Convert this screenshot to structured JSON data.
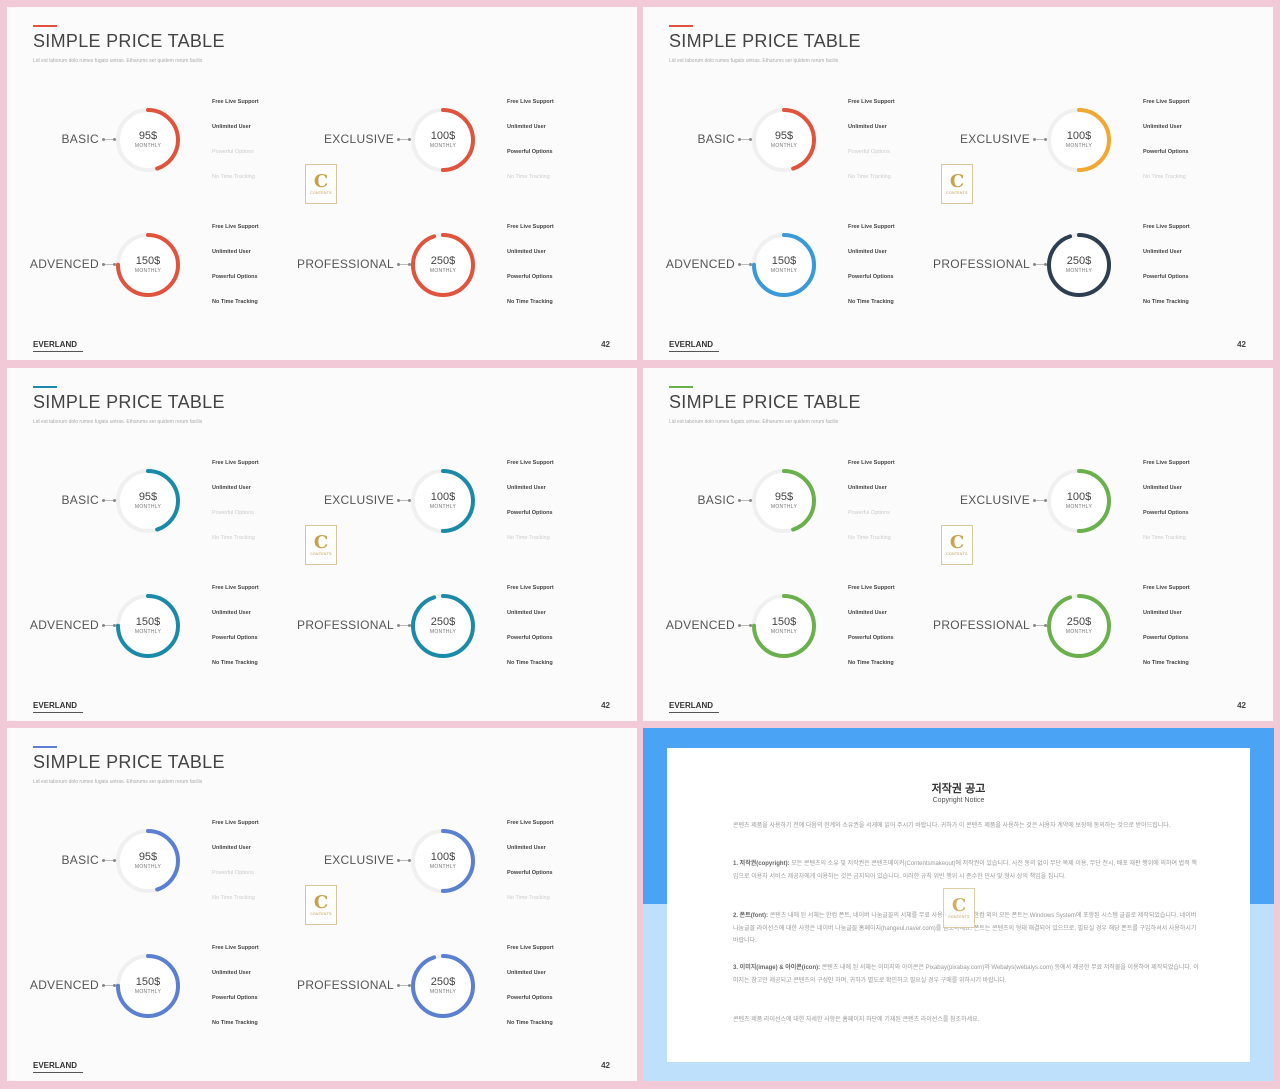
{
  "slide_common": {
    "title": "SIMPLE PRICE TABLE",
    "subtitle": "Lid est laborum dolo rumes fugats untras. Etharums ser quidem rerum facilis",
    "brand": "EVERLAND",
    "page_number": "42",
    "monthly_label": "MONTHLY",
    "logo_letter": "C",
    "logo_text": "CONTENTS"
  },
  "plans": [
    {
      "name": "BASIC",
      "price": "95$",
      "ring_fraction": 0.45,
      "features": [
        {
          "label": "Free Live Support",
          "enabled": true
        },
        {
          "label": "Unlimited User",
          "enabled": true
        },
        {
          "label": "Powerful Options",
          "enabled": false
        },
        {
          "label": "No Time Tracking",
          "enabled": false
        }
      ]
    },
    {
      "name": "EXCLUSIVE",
      "price": "100$",
      "ring_fraction": 0.5,
      "features": [
        {
          "label": "Free Live Support",
          "enabled": true
        },
        {
          "label": "Unlimited User",
          "enabled": true
        },
        {
          "label": "Powerful Options",
          "enabled": true
        },
        {
          "label": "No Time Tracking",
          "enabled": false
        }
      ]
    },
    {
      "name": "ADVENCED",
      "price": "150$",
      "ring_fraction": 0.75,
      "features": [
        {
          "label": "Free Live Support",
          "enabled": true
        },
        {
          "label": "Unlimited User",
          "enabled": true
        },
        {
          "label": "Powerful Options",
          "enabled": true
        },
        {
          "label": "No Time Tracking",
          "enabled": true
        }
      ]
    },
    {
      "name": "PROFESSIONAL",
      "price": "250$",
      "ring_fraction": 0.95,
      "features": [
        {
          "label": "Free Live Support",
          "enabled": true
        },
        {
          "label": "Unlimited User",
          "enabled": true
        },
        {
          "label": "Powerful Options",
          "enabled": true
        },
        {
          "label": "No Time Tracking",
          "enabled": true
        }
      ]
    }
  ],
  "slides": [
    {
      "accent": "#e0533d",
      "ring_colors": [
        "#e0533d",
        "#e0533d",
        "#e0533d",
        "#e0533d"
      ]
    },
    {
      "accent": "#e0533d",
      "ring_colors": [
        "#e0533d",
        "#f0a830",
        "#3a9ad9",
        "#2d3e50"
      ]
    },
    {
      "accent": "#1b8aa8",
      "ring_colors": [
        "#1b8aa8",
        "#1b8aa8",
        "#1b8aa8",
        "#1b8aa8"
      ]
    },
    {
      "accent": "#6ab04c",
      "ring_colors": [
        "#6ab04c",
        "#6ab04c",
        "#6ab04c",
        "#6ab04c"
      ]
    },
    {
      "accent": "#5b7fd1",
      "ring_colors": [
        "#5b7fd1",
        "#5b7fd1",
        "#5b7fd1",
        "#5b7fd1"
      ]
    }
  ],
  "notice": {
    "title": "저작권 공고",
    "subtitle": "Copyright Notice",
    "paragraphs": [
      {
        "lead": "",
        "text": "콘텐츠 제품을 사용하기 전에 다음의 한계와 소유권을 서게에 읽어 주시기 바랍니다. 귀하가 이 콘텐츠 제품을 사용하는 것은 사용자 계약에 보장에 동의하는 것으로 받아드립니다."
      },
      {
        "lead": "1. 저작권(copyright):",
        "text": " 모든 콘텐츠의 소유 및 저작권은 콘텐츠메이커(Contentsmakeout)에 저작권이 있습니다. 사전 동의 없이 무단 복제 이용, 무단 전시, 배포 재판 행위에 의하여 법적 책임으로 이용자 서비스 제공자에게 이용하는 것은 금지되어 있습니다. 이러한 규칙 위반 행위 시 준수한 민사 및 형사 상의 책임을 집니다."
      },
      {
        "lead": "2. 폰트(font):",
        "text": " 콘텐츠 내에 된 서체는 한컴 폰트, 네이버 나눔글꼴의 서체를 무료 사용하였습니다. 한컴 외의 모든 폰트는 Windows System에 포함된 시스템 글꼴로 제작되었습니다. 네이버 나눔글꼴 라이선스에 대한 사항은 네이버 나눔글꼴 홈페이지(hangeul.naver.com)를 참조하세요. 폰트는 콘텐츠의 형태 해결되어 있으므로, 필요실 경우 해당 폰트를 구입하셔서 사용하시기 바랍니다."
      },
      {
        "lead": "3. 이미지(image) & 아이콘(icon):",
        "text": " 콘텐츠 내에 된 서체는 이미지와 아이콘은 Pixabay(pixabay.com)와 Webalys(webalys.com) 등에서 제공한 무료 저작물을 이용하여 제작되었습니다. 이미지는 참고만 제공되고 콘텐츠의 구성만 하며, 귀하가 별도로 확인하고 필요실 경우 구매를 위하시기 바랍니다."
      },
      {
        "lead": "",
        "text": "콘텐츠 제품 라이선스에 대한 자세한 사항은 홈페이지 하단에 기재된 콘텐츠 라이선스를 참조하세요."
      }
    ]
  }
}
